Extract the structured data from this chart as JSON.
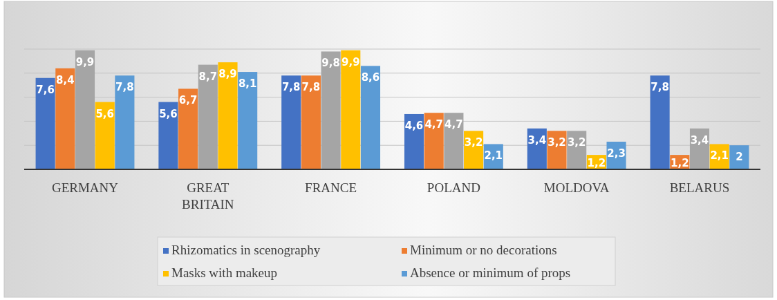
{
  "chart_data": {
    "type": "bar",
    "categories": [
      "GERMANY",
      "GREAT BRITAIN",
      "FRANCE",
      "POLAND",
      "MOLDOVA",
      "BELARUS"
    ],
    "ylim": [
      0,
      10
    ],
    "yticks": [
      {
        "value": 0,
        "label": null
      },
      {
        "value": 2,
        "label": null
      },
      {
        "value": 4,
        "label": null
      },
      {
        "value": 6,
        "label": null
      },
      {
        "value": 8,
        "label": null
      },
      {
        "value": 10,
        "label": null
      }
    ],
    "grid": "y",
    "legend": "bottom",
    "tick_labels": "x",
    "series": [
      {
        "name": "Rhizomatics in scenography",
        "color": "#4472c4",
        "values": [
          7.6,
          5.6,
          7.8,
          4.6,
          3.4,
          7.8
        ],
        "value_labels": [
          "7,6",
          "5,6",
          "7,8",
          "4,6",
          "3,4",
          "7,8"
        ]
      },
      {
        "name": "Minimum or no decorations",
        "color": "#ed7d31",
        "values": [
          8.4,
          6.7,
          7.8,
          4.7,
          3.2,
          1.2
        ],
        "value_labels": [
          "8,4",
          "6,7",
          "7,8",
          "4,7",
          "3,2",
          "1,2"
        ]
      },
      {
        "color": "#a5a5a5",
        "values": [
          9.9,
          8.7,
          9.8,
          4.7,
          3.2,
          3.4
        ],
        "value_labels": [
          "9,9",
          "8,7",
          "9,8",
          "4,7",
          "3,2",
          "3,4"
        ]
      },
      {
        "name": "Masks with makeup",
        "color": "#ffc000",
        "values": [
          5.6,
          8.9,
          9.9,
          3.2,
          1.2,
          2.1
        ],
        "value_labels": [
          "5,6",
          "8,9",
          "9,9",
          "3,2",
          "1,2",
          "2,1"
        ]
      },
      {
        "name": "Absence or minimum of props",
        "color": "#5b9bd5",
        "values": [
          7.8,
          8.1,
          8.6,
          2.1,
          2.3,
          2
        ],
        "value_labels": [
          "7,8",
          "8,1",
          "8,6",
          "2,1",
          "2,3",
          "2"
        ]
      }
    ]
  }
}
